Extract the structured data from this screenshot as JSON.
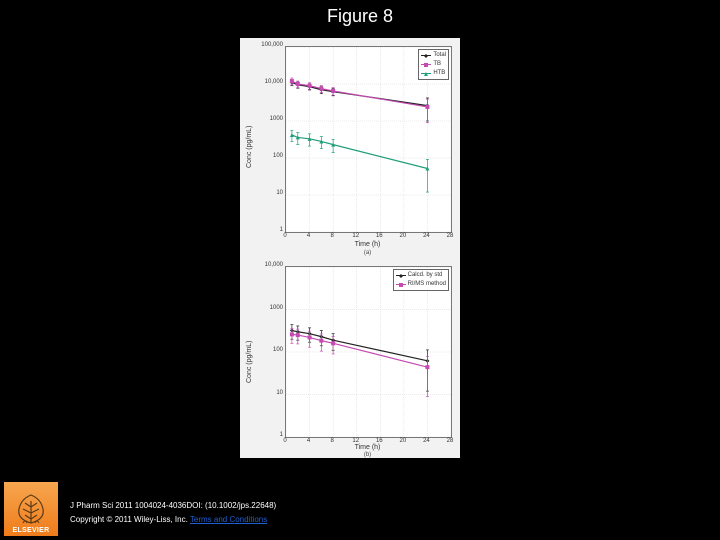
{
  "slide": {
    "background": "#000000",
    "title": "Figure 8"
  },
  "panel": {
    "background": "#f2f2f2",
    "plot_background": "#ffffff",
    "border_color": "#777777",
    "grid_color": "#aaaaaa",
    "tick_color": "#333333",
    "label_fontsize": 7,
    "tick_fontsize": 6
  },
  "chart_a": {
    "type": "line",
    "title": "",
    "panel_letter": "(a)",
    "x": {
      "label": "Time (h)",
      "ticks": [
        0,
        4,
        8,
        12,
        16,
        20,
        24,
        28
      ],
      "lim": [
        0,
        28
      ]
    },
    "y": {
      "label": "Conc (pg/mL)",
      "scale": "log",
      "ticks": [
        1,
        10,
        100,
        1000,
        10000,
        100000
      ],
      "tick_labels": [
        "1",
        "10",
        "100",
        "1000",
        "10,000",
        "100,000"
      ],
      "lim": [
        1,
        100000
      ]
    },
    "legend": {
      "pos": "top-right",
      "entries": [
        {
          "label": "Total",
          "color": "#222222",
          "marker": "diamond"
        },
        {
          "label": "TB",
          "color": "#c54ab1",
          "marker": "square"
        },
        {
          "label": "HTB",
          "color": "#1f9e7a",
          "marker": "triangle"
        }
      ]
    },
    "series": [
      {
        "name": "Total",
        "color": "#222222",
        "marker": "diamond",
        "line_width": 1.2,
        "x": [
          1,
          2,
          4,
          6,
          8,
          24
        ],
        "y": [
          11000,
          9500,
          8500,
          7000,
          6200,
          2600
        ],
        "err": [
          2000,
          1800,
          1600,
          1500,
          1400,
          1600
        ]
      },
      {
        "name": "TB",
        "color": "#c54ab1",
        "marker": "square",
        "line_width": 1.2,
        "x": [
          1,
          2,
          4,
          6,
          8,
          24
        ],
        "y": [
          12000,
          10000,
          9000,
          7500,
          6500,
          2400
        ],
        "err": [
          2500,
          2000,
          1800,
          1600,
          1500,
          1500
        ]
      },
      {
        "name": "HTB",
        "color": "#1f9e7a",
        "marker": "triangle",
        "line_width": 1.2,
        "x": [
          1,
          2,
          4,
          6,
          8,
          24
        ],
        "y": [
          420,
          360,
          330,
          280,
          230,
          52
        ],
        "err": [
          140,
          130,
          120,
          100,
          90,
          40
        ]
      }
    ]
  },
  "chart_b": {
    "type": "line",
    "title": "",
    "panel_letter": "(b)",
    "x": {
      "label": "Time (h)",
      "ticks": [
        0,
        4,
        8,
        12,
        16,
        20,
        24,
        28
      ],
      "lim": [
        0,
        28
      ]
    },
    "y": {
      "label": "Conc (pg/mL)",
      "scale": "log",
      "ticks": [
        1,
        10,
        100,
        1000,
        10000
      ],
      "tick_labels": [
        "1",
        "10",
        "100",
        "1000",
        "10,000"
      ],
      "lim": [
        1,
        10000
      ]
    },
    "legend": {
      "pos": "top-right",
      "entries": [
        {
          "label": "Calcd. by std",
          "color": "#222222",
          "marker": "diamond"
        },
        {
          "label": "RI/MS method",
          "color": "#c54ab1",
          "marker": "square"
        }
      ]
    },
    "series": [
      {
        "name": "Calcd. by std",
        "color": "#222222",
        "marker": "diamond",
        "line_width": 1.2,
        "x": [
          1,
          2,
          4,
          6,
          8,
          24
        ],
        "y": [
          320,
          300,
          270,
          230,
          190,
          62
        ],
        "err": [
          120,
          110,
          100,
          90,
          80,
          50
        ]
      },
      {
        "name": "RI/MS method",
        "color": "#c54ab1",
        "marker": "square",
        "line_width": 1.2,
        "x": [
          1,
          2,
          4,
          6,
          8,
          24
        ],
        "y": [
          260,
          250,
          220,
          185,
          160,
          44
        ],
        "err": [
          100,
          95,
          90,
          80,
          70,
          35
        ]
      }
    ]
  },
  "footer": {
    "publisher_logo_text": "ELSEVIER",
    "logo_bg_top": "#f7a650",
    "logo_bg_bottom": "#ef7c1a",
    "citation": "J Pharm Sci 2011 1004024-4036DOI: (10.1002/jps.22648)",
    "copyright_prefix": "Copyright © 2011 Wiley-Liss, Inc. ",
    "terms_link_text": "Terms and Conditions",
    "terms_link_color": "#1f5fd0"
  }
}
